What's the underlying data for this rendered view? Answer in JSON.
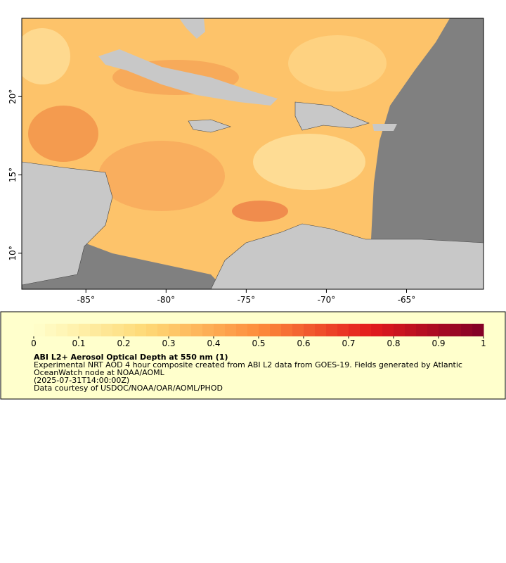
{
  "map": {
    "xlim": [
      -89,
      -60.2
    ],
    "ylim": [
      7.7,
      25.0
    ],
    "xticks": [
      {
        "value": -85,
        "label": "-85°"
      },
      {
        "value": -80,
        "label": "-80°"
      },
      {
        "value": -75,
        "label": "-75°"
      },
      {
        "value": -70,
        "label": "-70°"
      },
      {
        "value": -65,
        "label": "-65°"
      }
    ],
    "yticks": [
      {
        "value": 10,
        "label": "10°"
      },
      {
        "value": 15,
        "label": "15°"
      },
      {
        "value": 20,
        "label": "20°"
      }
    ]
  },
  "colorbar": {
    "lim": [
      0,
      1
    ],
    "ticks": [
      0,
      0.1,
      0.2,
      0.3,
      0.4,
      0.5,
      0.6,
      0.7,
      0.8,
      0.9,
      1
    ]
  },
  "legend": {
    "title": "ABI L2+ Aerosol Optical Depth at 550 nm (1)",
    "lines": [
      "Experimental NRT AOD 4 hour composite created from ABI L2 data from GOES-19. Fields generated by Atlantic",
      "OceanWatch node at NOAA/AOML",
      "(2025-07-31T14:00:00Z)",
      "Data courtesy of USDOC/NOAA/OAR/AOML/PHOD"
    ]
  }
}
